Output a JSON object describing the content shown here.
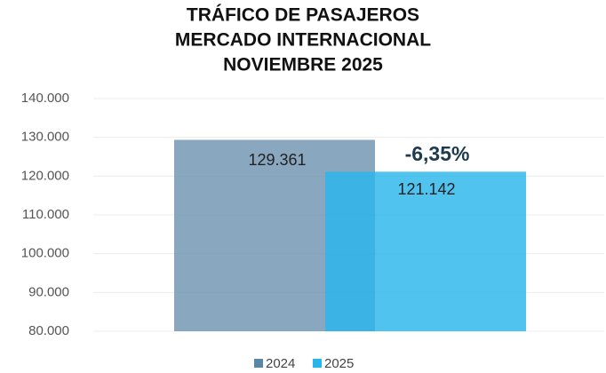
{
  "chart_data": {
    "type": "bar",
    "title": [
      "TRÁFICO DE PASAJEROS",
      "MERCADO INTERNACIONAL",
      "NOVIEMBRE 2025"
    ],
    "annotation": "-6,35%",
    "categories": [
      null
    ],
    "series": [
      {
        "name": "2024",
        "color": "#5b87a6",
        "values": [
          129361
        ],
        "value_labels": [
          "129.361"
        ]
      },
      {
        "name": "2025",
        "color": "#29b6ec",
        "values": [
          121142
        ],
        "value_labels": [
          "121.142"
        ]
      }
    ],
    "ylim": [
      80000,
      140000
    ],
    "yticks": [
      {
        "value": 80000,
        "label": "80.000"
      },
      {
        "value": 90000,
        "label": "90.000"
      },
      {
        "value": 100000,
        "label": "100.000"
      },
      {
        "value": 110000,
        "label": "110.000"
      },
      {
        "value": 120000,
        "label": "120.000"
      },
      {
        "value": 130000,
        "label": "130.000"
      },
      {
        "value": 140000,
        "label": "140.000"
      }
    ],
    "grid": true,
    "legend": "bottom"
  }
}
